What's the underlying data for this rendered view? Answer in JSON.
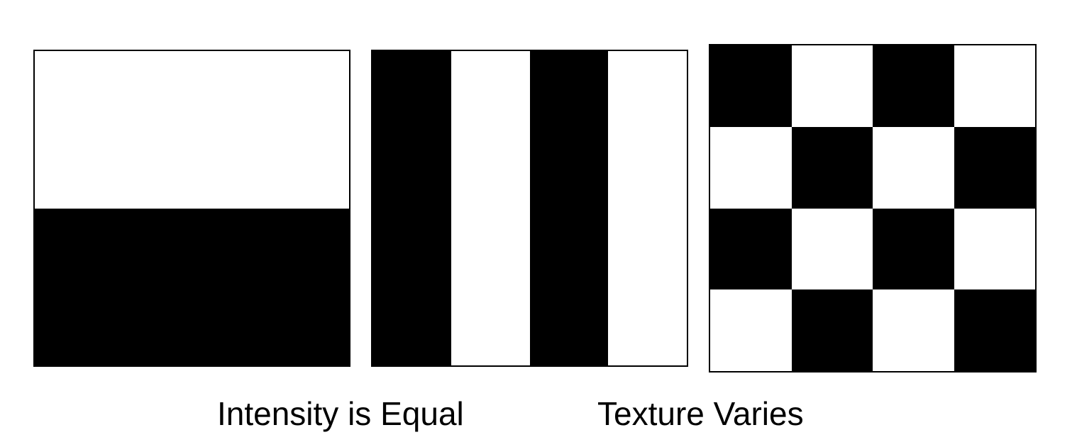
{
  "colors": {
    "dark": "#000000",
    "light": "#ffffff"
  },
  "panels": {
    "halves": {
      "pattern": "two horizontal halves",
      "top": "light",
      "bottom": "dark"
    },
    "stripes": {
      "pattern": "vertical stripes",
      "order": [
        "dark",
        "light",
        "dark",
        "light"
      ]
    },
    "checker": {
      "pattern": "checkerboard",
      "rows": [
        [
          "dark",
          "light",
          "dark",
          "light"
        ],
        [
          "light",
          "dark",
          "light",
          "dark"
        ],
        [
          "dark",
          "light",
          "dark",
          "light"
        ],
        [
          "light",
          "dark",
          "light",
          "dark"
        ]
      ]
    }
  },
  "captions": {
    "intensity": "Intensity is Equal",
    "texture": "Texture Varies"
  }
}
